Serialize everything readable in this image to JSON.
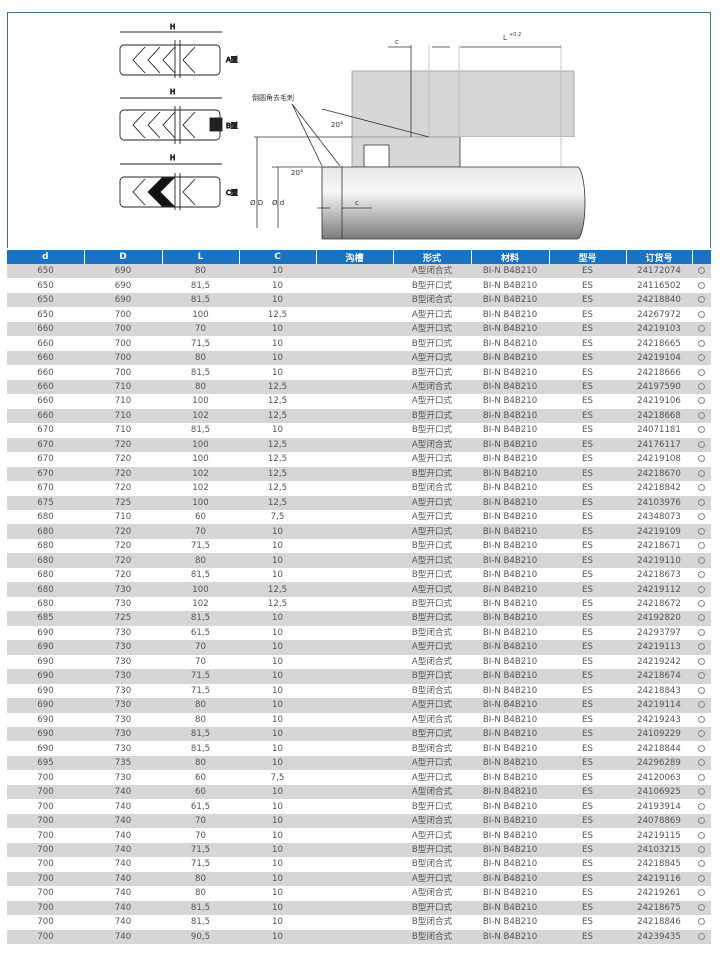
{
  "diagram": {
    "labels": {
      "H": "H",
      "type_a": "A型",
      "type_b": "B型",
      "type_c": "C型",
      "chamfer_note": "倒圆角去毛刺",
      "angle": "20°",
      "c": "c",
      "L": "L",
      "L_tol": "+0,2",
      "phi_D": "Ø D",
      "phi_d": "Ø d"
    }
  },
  "table": {
    "headers": [
      "d",
      "D",
      "L",
      "C",
      "沟槽",
      "形式",
      "材料",
      "型号",
      "订货号",
      ""
    ],
    "rows": [
      [
        "650",
        "690",
        "80",
        "10",
        "",
        "A型闭合式",
        "BI-N B4B210",
        "ES",
        "24172074"
      ],
      [
        "650",
        "690",
        "81,5",
        "10",
        "",
        "B型开口式",
        "BI-N B4B210",
        "ES",
        "24116502"
      ],
      [
        "650",
        "690",
        "81,5",
        "10",
        "",
        "B型闭合式",
        "BI-N B4B210",
        "ES",
        "24218840"
      ],
      [
        "650",
        "700",
        "100",
        "12,5",
        "",
        "A型开口式",
        "BI-N B4B210",
        "ES",
        "24267972"
      ],
      [
        "660",
        "700",
        "70",
        "10",
        "",
        "A型开口式",
        "BI-N B4B210",
        "ES",
        "24219103"
      ],
      [
        "660",
        "700",
        "71,5",
        "10",
        "",
        "B型开口式",
        "BI-N B4B210",
        "ES",
        "24218665"
      ],
      [
        "660",
        "700",
        "80",
        "10",
        "",
        "A型开口式",
        "BI-N B4B210",
        "ES",
        "24219104"
      ],
      [
        "660",
        "700",
        "81,5",
        "10",
        "",
        "B型开口式",
        "BI-N B4B210",
        "ES",
        "24218666"
      ],
      [
        "660",
        "710",
        "80",
        "12,5",
        "",
        "A型闭合式",
        "BI-N B4B210",
        "ES",
        "24197590"
      ],
      [
        "660",
        "710",
        "100",
        "12,5",
        "",
        "A型开口式",
        "BI-N B4B210",
        "ES",
        "24219106"
      ],
      [
        "660",
        "710",
        "102",
        "12,5",
        "",
        "B型开口式",
        "BI-N B4B210",
        "ES",
        "24218668"
      ],
      [
        "670",
        "710",
        "81,5",
        "10",
        "",
        "B型开口式",
        "BI-N B4B210",
        "ES",
        "24071181"
      ],
      [
        "670",
        "720",
        "100",
        "12,5",
        "",
        "A型闭合式",
        "BI-N B4B210",
        "ES",
        "24176117"
      ],
      [
        "670",
        "720",
        "100",
        "12,5",
        "",
        "A型开口式",
        "BI-N B4B210",
        "ES",
        "24219108"
      ],
      [
        "670",
        "720",
        "102",
        "12,5",
        "",
        "B型开口式",
        "BI-N B4B210",
        "ES",
        "24218670"
      ],
      [
        "670",
        "720",
        "102",
        "12,5",
        "",
        "B型闭合式",
        "BI-N B4B210",
        "ES",
        "24218842"
      ],
      [
        "675",
        "725",
        "100",
        "12,5",
        "",
        "A型开口式",
        "BI-N B4B210",
        "ES",
        "24103976"
      ],
      [
        "680",
        "710",
        "60",
        "7,5",
        "",
        "A型开口式",
        "BI-N B4B210",
        "ES",
        "24348073"
      ],
      [
        "680",
        "720",
        "70",
        "10",
        "",
        "A型开口式",
        "BI-N B4B210",
        "ES",
        "24219109"
      ],
      [
        "680",
        "720",
        "71,5",
        "10",
        "",
        "B型开口式",
        "BI-N B4B210",
        "ES",
        "24218671"
      ],
      [
        "680",
        "720",
        "80",
        "10",
        "",
        "A型开口式",
        "BI-N B4B210",
        "ES",
        "24219110"
      ],
      [
        "680",
        "720",
        "81,5",
        "10",
        "",
        "B型开口式",
        "BI-N B4B210",
        "ES",
        "24218673"
      ],
      [
        "680",
        "730",
        "100",
        "12,5",
        "",
        "A型开口式",
        "BI-N B4B210",
        "ES",
        "24219112"
      ],
      [
        "680",
        "730",
        "102",
        "12,5",
        "",
        "B型开口式",
        "BI-N B4B210",
        "ES",
        "24218672"
      ],
      [
        "685",
        "725",
        "81,5",
        "10",
        "",
        "B型开口式",
        "BI-N B4B210",
        "ES",
        "24192820"
      ],
      [
        "690",
        "730",
        "61,5",
        "10",
        "",
        "B型闭合式",
        "BI-N B4B210",
        "ES",
        "24293797"
      ],
      [
        "690",
        "730",
        "70",
        "10",
        "",
        "A型开口式",
        "BI-N B4B210",
        "ES",
        "24219113"
      ],
      [
        "690",
        "730",
        "70",
        "10",
        "",
        "A型闭合式",
        "BI-N B4B210",
        "ES",
        "24219242"
      ],
      [
        "690",
        "730",
        "71,5",
        "10",
        "",
        "B型开口式",
        "BI-N B4B210",
        "ES",
        "24218674"
      ],
      [
        "690",
        "730",
        "71,5",
        "10",
        "",
        "B型闭合式",
        "BI-N B4B210",
        "ES",
        "24218843"
      ],
      [
        "690",
        "730",
        "80",
        "10",
        "",
        "A型开口式",
        "BI-N B4B210",
        "ES",
        "24219114"
      ],
      [
        "690",
        "730",
        "80",
        "10",
        "",
        "A型闭合式",
        "BI-N B4B210",
        "ES",
        "24219243"
      ],
      [
        "690",
        "730",
        "81,5",
        "10",
        "",
        "B型开口式",
        "BI-N B4B210",
        "ES",
        "24109229"
      ],
      [
        "690",
        "730",
        "81,5",
        "10",
        "",
        "B型闭合式",
        "BI-N B4B210",
        "ES",
        "24218844"
      ],
      [
        "695",
        "735",
        "80",
        "10",
        "",
        "A型开口式",
        "BI-N B4B210",
        "ES",
        "24296289"
      ],
      [
        "700",
        "730",
        "60",
        "7,5",
        "",
        "A型开口式",
        "BI-N B4B210",
        "ES",
        "24120063"
      ],
      [
        "700",
        "740",
        "60",
        "10",
        "",
        "A型闭合式",
        "BI-N B4B210",
        "ES",
        "24106925"
      ],
      [
        "700",
        "740",
        "61,5",
        "10",
        "",
        "B型开口式",
        "BI-N B4B210",
        "ES",
        "24193914"
      ],
      [
        "700",
        "740",
        "70",
        "10",
        "",
        "A型闭合式",
        "BI-N B4B210",
        "ES",
        "24078869"
      ],
      [
        "700",
        "740",
        "70",
        "10",
        "",
        "A型开口式",
        "BI-N B4B210",
        "ES",
        "24219115"
      ],
      [
        "700",
        "740",
        "71,5",
        "10",
        "",
        "B型开口式",
        "BI-N B4B210",
        "ES",
        "24103215"
      ],
      [
        "700",
        "740",
        "71,5",
        "10",
        "",
        "B型闭合式",
        "BI-N B4B210",
        "ES",
        "24218845"
      ],
      [
        "700",
        "740",
        "80",
        "10",
        "",
        "A型开口式",
        "BI-N B4B210",
        "ES",
        "24219116"
      ],
      [
        "700",
        "740",
        "80",
        "10",
        "",
        "A型闭合式",
        "BI-N B4B210",
        "ES",
        "24219261"
      ],
      [
        "700",
        "740",
        "81,5",
        "10",
        "",
        "B型开口式",
        "BI-N B4B210",
        "ES",
        "24218675"
      ],
      [
        "700",
        "740",
        "81,5",
        "10",
        "",
        "B型闭合式",
        "BI-N B4B210",
        "ES",
        "24218846"
      ],
      [
        "700",
        "740",
        "90,5",
        "10",
        "",
        "B型闭合式",
        "BI-N B4B210",
        "ES",
        "24239435"
      ]
    ]
  },
  "colors": {
    "header_bg": "#1a72c2",
    "row_alt": "#d6d6d6"
  }
}
